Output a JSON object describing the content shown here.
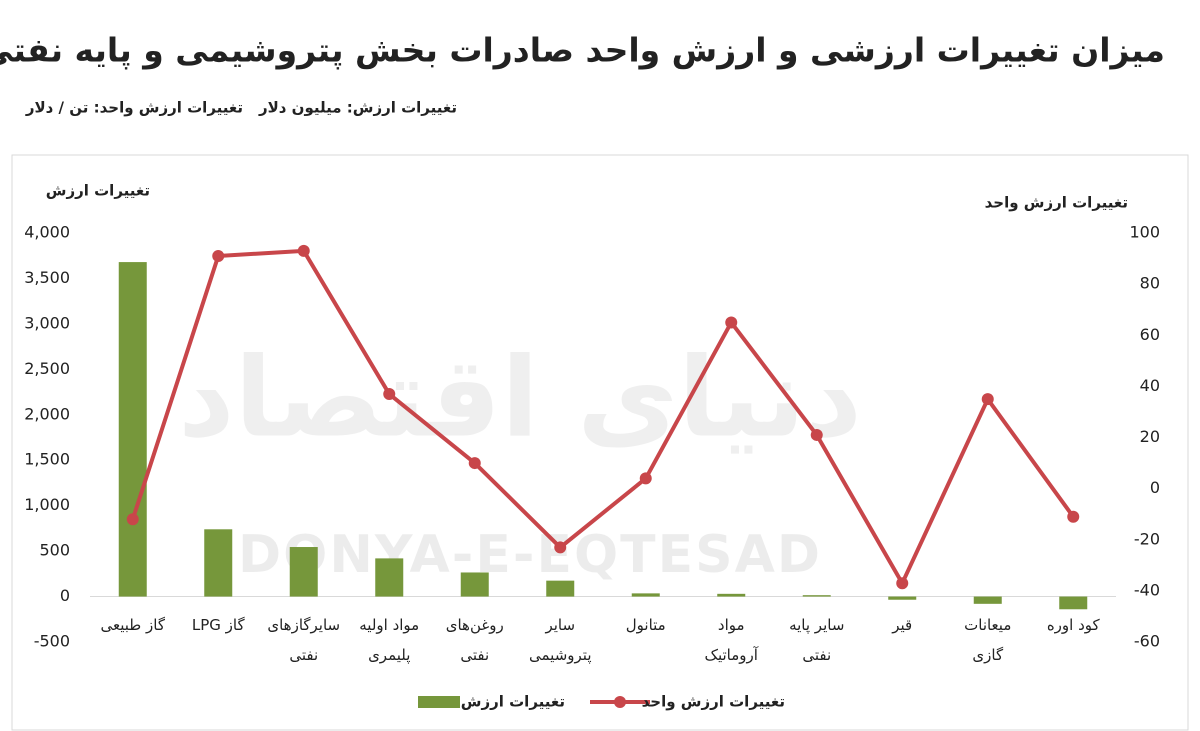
{
  "title": "میزان تغییرات ارزشی و ارزش واحد صادرات بخش پتروشیمی و پایه نفتی",
  "subtitle": [
    "تغییرات ارزش: میلیون دلار",
    "تغییرات ارزش واحد: تن / دلار"
  ],
  "chart_data": {
    "type": "bar_line",
    "watermark": [
      "دنیای اقتصاد",
      "DONYA-E-EQTESAD"
    ],
    "ylabel": "تغییرات ارزش",
    "y2label": "تغییرات ارزش واحد",
    "categories": [
      [
        "گاز طبیعی"
      ],
      [
        "گاز LPG"
      ],
      [
        "سایرگازهای",
        "نفتی"
      ],
      [
        "مواد اولیه",
        "پلیمری"
      ],
      [
        "روغن‌های",
        "نفتی"
      ],
      [
        "سایر",
        "پتروشیمی"
      ],
      [
        "متانول"
      ],
      [
        "مواد",
        "آروماتیک"
      ],
      [
        "سایر پایه",
        "نفتی"
      ],
      [
        "قیر"
      ],
      [
        "میعانات",
        "گازی"
      ],
      [
        "کود اوره"
      ]
    ],
    "series": [
      {
        "name": "تغییرات ارزش",
        "type": "bar",
        "color": "#76973b",
        "values": [
          3680,
          740,
          545,
          420,
          265,
          175,
          35,
          30,
          15,
          -35,
          -80,
          -140
        ]
      },
      {
        "name": "تغییرات ارزش واحد",
        "type": "line",
        "axis": "y2",
        "color": "#c8464a",
        "values": [
          -12,
          91,
          93,
          37,
          10,
          -23,
          4,
          65,
          21,
          -37,
          35,
          -11
        ]
      }
    ],
    "ylim": [
      -500,
      4000
    ],
    "yticks": [
      -500,
      0,
      500,
      {
        "value": 1000,
        "label": "1,000"
      },
      {
        "value": 1500,
        "label": "1,500"
      },
      {
        "value": 2000,
        "label": "2,000"
      },
      {
        "value": 2500,
        "label": "2,500"
      },
      {
        "value": 3000,
        "label": "3,000"
      },
      {
        "value": 3500,
        "label": "3,500"
      },
      {
        "value": 4000,
        "label": "4,000"
      }
    ],
    "y2lim": [
      -60,
      100
    ],
    "y2ticks": [
      -60,
      -40,
      -20,
      0,
      20,
      40,
      60,
      80,
      100
    ],
    "legend": "bottom"
  }
}
